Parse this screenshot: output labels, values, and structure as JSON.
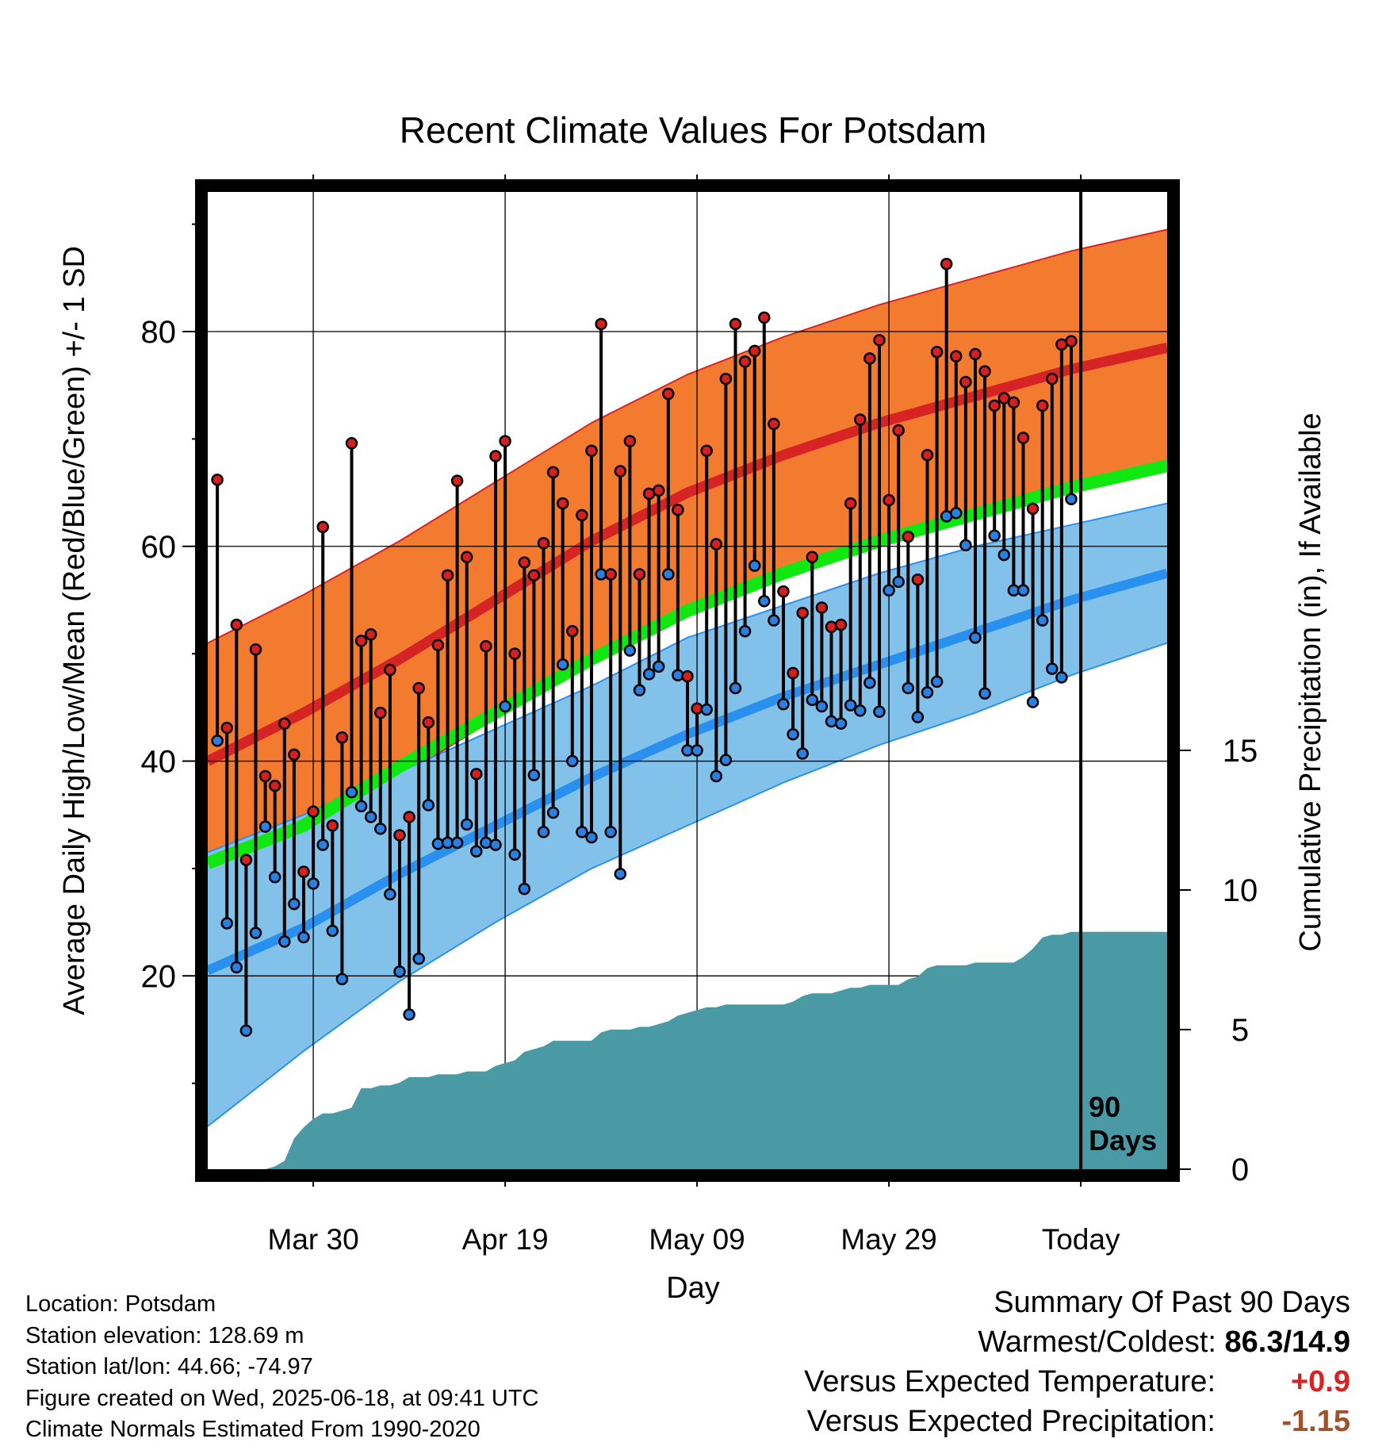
{
  "chart_data": {
    "type": "line",
    "title": "Recent Climate Values For Potsdam",
    "xlabel": "Day",
    "ylabel": "Average Daily High/Low/Mean (Red/Blue/Green) +/- 1 SD",
    "y2label": "Cumulative Precipitation (in), If Available",
    "x_ticks": [
      "Mar 30",
      "Apr 19",
      "May 09",
      "May 29",
      "Today"
    ],
    "x_tick_days": [
      11,
      31,
      51,
      71,
      91
    ],
    "x_range_days": [
      0,
      100
    ],
    "ylim": [
      2,
      93
    ],
    "y_ticks": [
      "20",
      "40",
      "60",
      "80"
    ],
    "y_tick_values": [
      20,
      40,
      60,
      80
    ],
    "y2lim": [
      0,
      35
    ],
    "y2_ticks": [
      "0",
      "5",
      "10",
      "15"
    ],
    "y2_tick_values": [
      0,
      5,
      10,
      15
    ],
    "today_label": "90\nDays",
    "today_day": 91,
    "normals": {
      "high_mean": [
        [
          0,
          40
        ],
        [
          10,
          44.5
        ],
        [
          20,
          49.5
        ],
        [
          30,
          55
        ],
        [
          40,
          60.5
        ],
        [
          50,
          65
        ],
        [
          60,
          68.5
        ],
        [
          70,
          71.5
        ],
        [
          80,
          74
        ],
        [
          90,
          76.5
        ],
        [
          100,
          78.5
        ]
      ],
      "high_sd": 11,
      "low_mean": [
        [
          0,
          20.5
        ],
        [
          10,
          24.5
        ],
        [
          20,
          29.5
        ],
        [
          30,
          34
        ],
        [
          40,
          38.5
        ],
        [
          50,
          42.5
        ],
        [
          60,
          46
        ],
        [
          70,
          49
        ],
        [
          80,
          52
        ],
        [
          90,
          55
        ],
        [
          100,
          57.5
        ]
      ],
      "low_upper": [
        [
          0,
          31.5
        ],
        [
          10,
          35
        ],
        [
          20,
          39
        ],
        [
          30,
          43
        ],
        [
          40,
          47
        ],
        [
          50,
          51.5
        ],
        [
          60,
          54.5
        ],
        [
          70,
          57.5
        ],
        [
          80,
          60
        ],
        [
          90,
          62
        ],
        [
          100,
          64
        ]
      ],
      "low_lower": [
        [
          0,
          6
        ],
        [
          10,
          13
        ],
        [
          20,
          19.5
        ],
        [
          30,
          25
        ],
        [
          40,
          30
        ],
        [
          50,
          34
        ],
        [
          60,
          38
        ],
        [
          70,
          41.5
        ],
        [
          80,
          44.5
        ],
        [
          90,
          48
        ],
        [
          100,
          51
        ]
      ],
      "mean_line": [
        [
          0,
          30.5
        ],
        [
          10,
          34
        ],
        [
          20,
          39.5
        ],
        [
          30,
          44.5
        ],
        [
          40,
          49.5
        ],
        [
          50,
          54
        ],
        [
          60,
          57.5
        ],
        [
          70,
          60.5
        ],
        [
          80,
          63
        ],
        [
          90,
          65.5
        ],
        [
          100,
          67.5
        ]
      ]
    },
    "highs": [
      66.2,
      43.1,
      52.7,
      30.8,
      50.4,
      38.6,
      37.7,
      43.5,
      40.6,
      29.7,
      35.3,
      61.8,
      34.0,
      42.2,
      69.6,
      51.2,
      51.8,
      44.5,
      48.5,
      33.1,
      34.8,
      46.8,
      43.6,
      50.8,
      57.3,
      66.1,
      59.0,
      38.8,
      50.7,
      68.4,
      69.8,
      50.0,
      58.5,
      57.3,
      60.3,
      66.9,
      64.0,
      52.1,
      62.9,
      68.9,
      80.7,
      57.4,
      67.0,
      69.8,
      57.4,
      64.9,
      65.2,
      74.2,
      63.4,
      47.9,
      44.9,
      68.9,
      60.2,
      75.6,
      80.7,
      77.2,
      78.2,
      81.3,
      71.4,
      55.8,
      48.2,
      53.8,
      59.0,
      54.3,
      52.5,
      52.7,
      64.0,
      71.8,
      77.5,
      79.2,
      64.3,
      70.8,
      60.9,
      56.9,
      68.5,
      78.1,
      86.3,
      77.7,
      75.3,
      77.9,
      76.3,
      73.1,
      73.8,
      73.4,
      70.1,
      63.5,
      73.1,
      75.6,
      78.8,
      79.1
    ],
    "lows": [
      41.9,
      24.9,
      20.8,
      14.9,
      24.0,
      33.9,
      29.2,
      23.2,
      26.7,
      23.6,
      28.6,
      32.2,
      24.2,
      19.7,
      37.1,
      35.8,
      34.8,
      33.7,
      27.6,
      20.4,
      16.4,
      21.6,
      35.9,
      32.3,
      32.4,
      32.4,
      34.1,
      31.6,
      32.4,
      32.2,
      45.1,
      31.3,
      28.1,
      38.7,
      33.4,
      35.2,
      49.0,
      40.0,
      33.4,
      32.9,
      57.4,
      33.4,
      29.5,
      50.3,
      46.6,
      48.1,
      48.8,
      57.4,
      48.0,
      41.0,
      41.0,
      44.8,
      38.6,
      40.1,
      46.8,
      52.1,
      58.2,
      54.9,
      53.1,
      45.3,
      42.5,
      40.7,
      45.7,
      45.1,
      43.7,
      43.5,
      45.2,
      44.7,
      47.3,
      44.6,
      55.9,
      56.7,
      46.8,
      44.1,
      46.4,
      47.4,
      62.8,
      63.1,
      60.1,
      51.5,
      46.3,
      61.0,
      59.2,
      55.9,
      55.9,
      45.5,
      53.1,
      48.6,
      47.8,
      64.4
    ],
    "precip_cum": [
      [
        0,
        0
      ],
      [
        6,
        0
      ],
      [
        7,
        0.1
      ],
      [
        8,
        0.3
      ],
      [
        9,
        1.1
      ],
      [
        10,
        1.5
      ],
      [
        11,
        1.8
      ],
      [
        12,
        2.0
      ],
      [
        13,
        2.0
      ],
      [
        14,
        2.1
      ],
      [
        15,
        2.2
      ],
      [
        16,
        2.9
      ],
      [
        17,
        2.9
      ],
      [
        18,
        3.0
      ],
      [
        19,
        3.0
      ],
      [
        20,
        3.1
      ],
      [
        21,
        3.3
      ],
      [
        22,
        3.3
      ],
      [
        23,
        3.3
      ],
      [
        24,
        3.4
      ],
      [
        25,
        3.4
      ],
      [
        26,
        3.4
      ],
      [
        27,
        3.5
      ],
      [
        28,
        3.5
      ],
      [
        29,
        3.5
      ],
      [
        30,
        3.7
      ],
      [
        31,
        3.8
      ],
      [
        32,
        3.9
      ],
      [
        33,
        4.2
      ],
      [
        34,
        4.3
      ],
      [
        35,
        4.4
      ],
      [
        36,
        4.6
      ],
      [
        37,
        4.6
      ],
      [
        38,
        4.6
      ],
      [
        39,
        4.6
      ],
      [
        40,
        4.6
      ],
      [
        41,
        4.9
      ],
      [
        42,
        5.0
      ],
      [
        43,
        5.0
      ],
      [
        44,
        5.0
      ],
      [
        45,
        5.1
      ],
      [
        46,
        5.1
      ],
      [
        47,
        5.2
      ],
      [
        48,
        5.3
      ],
      [
        49,
        5.5
      ],
      [
        50,
        5.6
      ],
      [
        51,
        5.7
      ],
      [
        52,
        5.8
      ],
      [
        53,
        5.8
      ],
      [
        54,
        5.9
      ],
      [
        55,
        5.9
      ],
      [
        56,
        5.9
      ],
      [
        57,
        5.9
      ],
      [
        58,
        5.9
      ],
      [
        59,
        5.9
      ],
      [
        60,
        5.9
      ],
      [
        61,
        6.0
      ],
      [
        62,
        6.2
      ],
      [
        63,
        6.3
      ],
      [
        64,
        6.3
      ],
      [
        65,
        6.3
      ],
      [
        66,
        6.4
      ],
      [
        67,
        6.5
      ],
      [
        68,
        6.5
      ],
      [
        69,
        6.6
      ],
      [
        70,
        6.6
      ],
      [
        71,
        6.6
      ],
      [
        72,
        6.6
      ],
      [
        73,
        6.8
      ],
      [
        74,
        6.9
      ],
      [
        75,
        7.2
      ],
      [
        76,
        7.3
      ],
      [
        77,
        7.3
      ],
      [
        78,
        7.3
      ],
      [
        79,
        7.3
      ],
      [
        80,
        7.4
      ],
      [
        81,
        7.4
      ],
      [
        82,
        7.4
      ],
      [
        83,
        7.4
      ],
      [
        84,
        7.4
      ],
      [
        85,
        7.6
      ],
      [
        86,
        7.9
      ],
      [
        87,
        8.3
      ],
      [
        88,
        8.4
      ],
      [
        89,
        8.4
      ],
      [
        90,
        8.5
      ],
      [
        91,
        8.5
      ],
      [
        92,
        8.5
      ],
      [
        93,
        8.5
      ],
      [
        94,
        8.5
      ],
      [
        95,
        8.5
      ],
      [
        96,
        8.5
      ],
      [
        97,
        8.5
      ],
      [
        98,
        8.5
      ],
      [
        99,
        8.5
      ],
      [
        100,
        8.5
      ]
    ],
    "colors": {
      "high_band": "#f37b30",
      "high_band_edge": "#d62323",
      "high_mean": "#d62323",
      "low_band": "#82c2ea",
      "low_band_edge": "#2a90f0",
      "low_mean": "#2a90f0",
      "mean": "#11e811",
      "precip": "#4a9aa6",
      "high_dot": "#d62020",
      "low_dot": "#2a80e0"
    }
  },
  "info": {
    "location": "Location: Potsdam",
    "elevation": "Station elevation: 128.69 m",
    "latlon": "Station lat/lon: 44.66; -74.97",
    "created": "Figure created on Wed, 2025-06-18, at 09:41 UTC",
    "normals": "Climate Normals Estimated From 1990-2020"
  },
  "summary": {
    "title": "Summary Of Past 90 Days",
    "warm_cold_label": "Warmest/Coldest:",
    "warm_cold_value": "86.3/14.9",
    "temp_label": "Versus Expected Temperature:",
    "temp_value": "+0.9",
    "temp_color": "#d62323",
    "precip_label": "Versus Expected Precipitation:",
    "precip_value": "-1.15",
    "precip_color": "#a0522d"
  }
}
